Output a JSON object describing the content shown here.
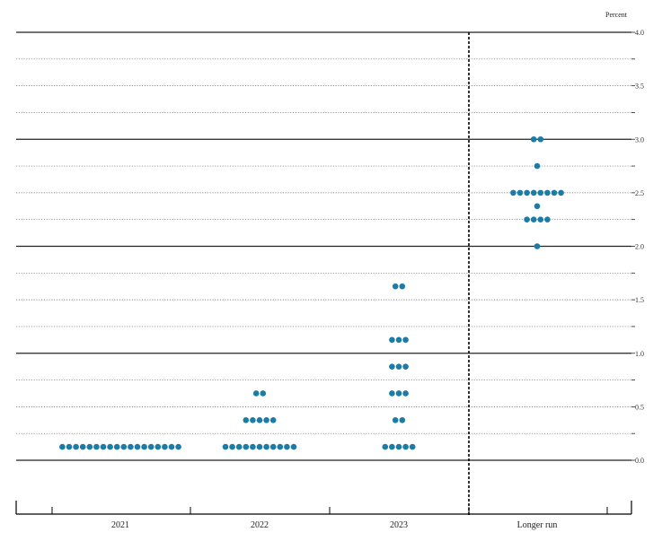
{
  "chart_data": {
    "type": "scatter",
    "chart_kind": "dot plot",
    "unit_label": "Percent",
    "categories": [
      "2021",
      "2022",
      "2023",
      "Longer run"
    ],
    "ylim": [
      0,
      4.0
    ],
    "y_ticks": [
      "4.0",
      "3.5",
      "3.0",
      "2.5",
      "2.0",
      "1.5",
      "1.0",
      "0.5",
      "0.0"
    ],
    "series": [
      {
        "category": "2021",
        "points": [
          {
            "y": 0.125,
            "count": 18
          }
        ]
      },
      {
        "category": "2022",
        "points": [
          {
            "y": 0.625,
            "count": 2
          },
          {
            "y": 0.375,
            "count": 5
          },
          {
            "y": 0.125,
            "count": 11
          }
        ]
      },
      {
        "category": "2023",
        "points": [
          {
            "y": 1.625,
            "count": 2
          },
          {
            "y": 1.125,
            "count": 3
          },
          {
            "y": 0.875,
            "count": 3
          },
          {
            "y": 0.625,
            "count": 3
          },
          {
            "y": 0.375,
            "count": 2
          },
          {
            "y": 0.125,
            "count": 5
          }
        ]
      },
      {
        "category": "Longer run",
        "points": [
          {
            "y": 3.0,
            "count": 2
          },
          {
            "y": 2.75,
            "count": 1
          },
          {
            "y": 2.5,
            "count": 8
          },
          {
            "y": 2.375,
            "count": 1
          },
          {
            "y": 2.25,
            "count": 4
          },
          {
            "y": 2.0,
            "count": 1
          }
        ]
      }
    ],
    "colors": {
      "dot": "#1c7ca6",
      "grid_major": "#222222",
      "grid_minor": "#666666",
      "divider": "#000000"
    }
  }
}
